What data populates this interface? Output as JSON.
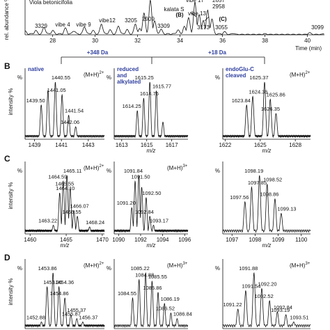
{
  "chart_data": [
    {
      "type": "line",
      "panel": "A",
      "ylabel": "rel. abundance %",
      "xlabel": "Time (min)",
      "header_text": "Viola betonicifolia",
      "xlim": [
        26.7,
        40.8
      ],
      "x_ticks": [
        "28",
        "30",
        "32",
        "34",
        "36",
        "38",
        "40"
      ],
      "annotations": [
        {
          "text": "3329",
          "x": 27.6
        },
        {
          "text": "vibe 4",
          "x": 28.7
        },
        {
          "text": "vibe 9",
          "x": 29.6
        },
        {
          "text": "vibe12",
          "x": 30.4
        },
        {
          "text": "3205",
          "x": 31.1
        },
        {
          "text": "2909",
          "x": 31.9
        },
        {
          "text": "3309",
          "x": 32.3
        },
        {
          "text": "3173",
          "x": 33.9
        },
        {
          "text": "kalata S",
          "x": 33.8
        },
        {
          "text": "(B)",
          "x": 33.9
        },
        {
          "text": "vibe 17",
          "x": 35.0
        },
        {
          "text": "2657",
          "x": 35.6
        },
        {
          "text": "2958",
          "x": 35.6
        },
        {
          "text": "vibe 13",
          "x": 35.4
        },
        {
          "text": "(C)",
          "x": 35.6
        },
        {
          "text": "3055",
          "x": 36.3
        },
        {
          "text": "3099",
          "x": 40.1
        }
      ],
      "trace": [
        [
          26.7,
          0.08
        ],
        [
          27.2,
          0.1
        ],
        [
          27.6,
          0.2
        ],
        [
          28,
          0.1
        ],
        [
          28.6,
          0.17
        ],
        [
          29,
          0.1
        ],
        [
          29.5,
          0.22
        ],
        [
          29.9,
          0.1
        ],
        [
          30.3,
          0.3
        ],
        [
          30.7,
          0.12
        ],
        [
          31.1,
          0.24
        ],
        [
          31.5,
          0.13
        ],
        [
          31.9,
          0.3
        ],
        [
          32.1,
          0.15
        ],
        [
          32.3,
          0.62
        ],
        [
          32.6,
          1.0
        ],
        [
          32.8,
          0.4
        ],
        [
          33.1,
          0.14
        ],
        [
          33.9,
          0.12
        ],
        [
          34.2,
          0.22
        ],
        [
          34.4,
          0.5
        ],
        [
          34.7,
          0.95
        ],
        [
          34.9,
          0.6
        ],
        [
          35.1,
          0.4
        ],
        [
          35.3,
          0.7
        ],
        [
          35.5,
          0.45
        ],
        [
          36.1,
          0.08
        ],
        [
          36.5,
          0.03
        ],
        [
          38,
          0.02
        ],
        [
          40.1,
          0.05
        ],
        [
          40.8,
          0.02
        ]
      ]
    },
    {
      "type": "line",
      "panel": "B",
      "ylabel": "intensity %",
      "spectra": [
        {
          "label": [
            "native"
          ],
          "charge": "(M+H)",
          "charge_sup": "2+",
          "xlim": [
            1438.3,
            1444.2
          ],
          "x_ticks": [
            "1439",
            "1441",
            "1443"
          ],
          "xlabel": "",
          "peaks": [
            [
              1439.5,
              0.6
            ],
            [
              1440.0,
              0.85
            ],
            [
              1440.55,
              1.0
            ],
            [
              1441.05,
              0.78
            ],
            [
              1441.54,
              0.42
            ],
            [
              1442.06,
              0.22
            ]
          ],
          "peak_labels": [
            "1439.50",
            "1440.55",
            "1441.05",
            "1441.54",
            "1442.06"
          ]
        },
        {
          "label": [
            "reduced",
            "and",
            "alkylated"
          ],
          "charge": "",
          "charge_sup": "",
          "xlim": [
            1612.4,
            1618.3
          ],
          "x_ticks": [
            "1613",
            "1615",
            "1617"
          ],
          "xlabel": "m/z",
          "peaks": [
            [
              1614.25,
              0.5
            ],
            [
              1614.76,
              0.72
            ],
            [
              1615.25,
              1.0
            ],
            [
              1615.77,
              0.85
            ],
            [
              1616.3,
              0.3
            ]
          ],
          "peak_labels": [
            "1614.25",
            "1614.76",
            "1615.25",
            "1615.77"
          ]
        },
        {
          "label": [
            "endoGlu-C",
            "cleaved"
          ],
          "charge": "(M+H)",
          "charge_sup": "2+",
          "xlim": [
            1621.8,
            1629.3
          ],
          "x_ticks": [
            "1622",
            "1625",
            "1628"
          ],
          "xlabel": "m/z",
          "peaks": [
            [
              1623.84,
              0.6
            ],
            [
              1624.36,
              0.75
            ],
            [
              1625.37,
              1.0
            ],
            [
              1625.86,
              0.7
            ],
            [
              1626.35,
              0.45
            ]
          ],
          "peak_labels": [
            "1623.84",
            "1624.36",
            "1625.37",
            "1625.86",
            "1626.35"
          ]
        }
      ],
      "brackets": [
        "+348 Da",
        "+18 Da"
      ]
    },
    {
      "type": "line",
      "panel": "C",
      "ylabel": "intensity %",
      "spectra": [
        {
          "charge": "(M+H)",
          "charge_sup": "2+",
          "xlim": [
            1459.3,
            1470.3
          ],
          "x_ticks": [
            "1460",
            "1465",
            "1470"
          ],
          "xlabel": "m/z",
          "peaks": [
            [
              1463.22,
              0.15
            ],
            [
              1464.1,
              0.7
            ],
            [
              1464.59,
              0.9
            ],
            [
              1465.11,
              1.0
            ],
            [
              1465.55,
              0.78
            ],
            [
              1466.07,
              0.4
            ],
            [
              1466.55,
              0.3
            ],
            [
              1468.24,
              0.12
            ]
          ],
          "peak_labels": [
            "1463.22",
            "1464.10",
            "1464.59",
            "1465.11",
            "1465.55",
            "1466.07",
            "1466.55",
            "1468.24"
          ]
        },
        {
          "charge": "(M+H)",
          "charge_sup": "3+",
          "xlim": [
            1089.6,
            1096.3
          ],
          "x_ticks": [
            "1090",
            "1092",
            "1094",
            "1096"
          ],
          "xlabel": "m/z",
          "peaks": [
            [
              1091.2,
              0.45
            ],
            [
              1091.5,
              0.9
            ],
            [
              1091.84,
              1.0
            ],
            [
              1092.1,
              0.8
            ],
            [
              1092.5,
              0.62
            ],
            [
              1092.84,
              0.3
            ],
            [
              1093.17,
              0.15
            ]
          ],
          "peak_labels": [
            "1091.20",
            "1091.50",
            "1091.84",
            "1092.50",
            "1092.84",
            "1093.17"
          ]
        },
        {
          "charge": "",
          "charge_sup": "",
          "xlim": [
            1096.6,
            1100.4
          ],
          "x_ticks": [
            "1097",
            "1098",
            "1099",
            "1100"
          ],
          "xlabel": "m/z",
          "peaks": [
            [
              1097.56,
              0.55
            ],
            [
              1097.85,
              0.8
            ],
            [
              1098.19,
              1.0
            ],
            [
              1098.52,
              0.85
            ],
            [
              1098.86,
              0.6
            ],
            [
              1099.13,
              0.35
            ]
          ],
          "peak_labels": [
            "1097.56",
            "1097.85",
            "1098.19",
            "1098.52",
            "1098.86",
            "1099.13"
          ]
        }
      ]
    },
    {
      "type": "line",
      "panel": "D",
      "ylabel": "intensity %",
      "spectra": [
        {
          "charge": "(M+H)",
          "charge_sup": "2+",
          "xlim": [
            1451.5,
            1458.2
          ],
          "x_ticks": [],
          "peaks": [
            [
              1452.88,
              0.12
            ],
            [
              1453.36,
              0.75
            ],
            [
              1453.86,
              1.0
            ],
            [
              1454.36,
              0.75
            ],
            [
              1454.86,
              0.55
            ],
            [
              1455.37,
              0.25
            ],
            [
              1455.87,
              0.18
            ],
            [
              1456.37,
              0.12
            ]
          ],
          "peak_labels": [
            "1452.88",
            "1453.36",
            "1453.86",
            "1454.36",
            "1454.86",
            "1455.37",
            "1455.87",
            "1456.37"
          ]
        },
        {
          "charge": "(M+H)",
          "charge_sup": "3+",
          "xlim": [
            1083.6,
            1087.4
          ],
          "x_ticks": [],
          "peaks": [
            [
              1084.55,
              0.55
            ],
            [
              1084.88,
              0.88
            ],
            [
              1085.22,
              1.0
            ],
            [
              1085.55,
              0.85
            ],
            [
              1085.86,
              0.65
            ],
            [
              1086.19,
              0.45
            ],
            [
              1086.52,
              0.28
            ],
            [
              1086.84,
              0.18
            ]
          ],
          "peak_labels": [
            "1084.55",
            "1084.88",
            "1085.22",
            "1085.55",
            "1085.86",
            "1086.19",
            "1086.52",
            "1086.84"
          ]
        },
        {
          "charge": "(M+H)",
          "charge_sup": "3+",
          "xlim": [
            1090.6,
            1094.2
          ],
          "x_ticks": [],
          "peaks": [
            [
              1091.22,
              0.35
            ],
            [
              1091.54,
              0.68
            ],
            [
              1091.88,
              1.0
            ],
            [
              1092.2,
              0.72
            ],
            [
              1092.52,
              0.5
            ],
            [
              1092.84,
              0.3
            ],
            [
              1093.19,
              0.25
            ],
            [
              1093.51,
              0.12
            ]
          ],
          "peak_labels": [
            "1091.22",
            "1091.54",
            "1091.88",
            "1092.20",
            "1092.52",
            "1092.84",
            "1093.19",
            "1093.51"
          ]
        }
      ]
    }
  ]
}
